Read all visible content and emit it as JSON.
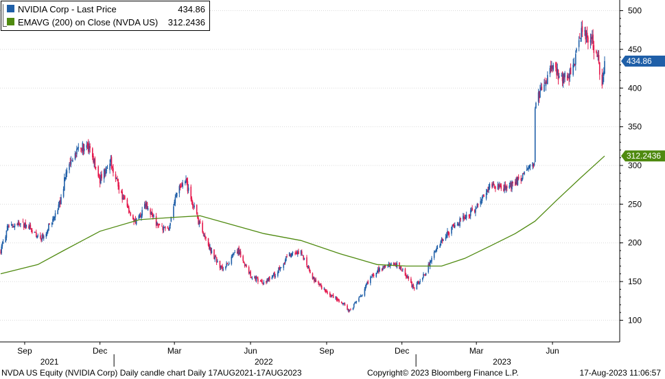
{
  "legend": [
    {
      "label": "NVIDIA Corp - Last Price",
      "value": "434.86",
      "color": "#1f5fa8"
    },
    {
      "label": "EMAVG (200)  on Close (NVDA US)",
      "value": "312.2436",
      "color": "#4f8a10"
    }
  ],
  "footer": {
    "left": "NVDA US Equity (NVIDIA Corp) Daily candle chart  Daily 17AUG2021-17AUG2023",
    "center": "Copyright© 2023 Bloomberg Finance L.P.",
    "right": "17-Aug-2023 11:06:57"
  },
  "chart_data": {
    "type": "candlestick",
    "y_axis": {
      "position": "right",
      "ticks": [
        100,
        150,
        200,
        250,
        300,
        350,
        400,
        450,
        500
      ],
      "range": [
        72,
        512
      ]
    },
    "x_axis": {
      "range": [
        "2021-08-17",
        "2023-08-17"
      ],
      "month_ticks": [
        {
          "date": "2021-09-15",
          "label": "Sep"
        },
        {
          "date": "2021-12-15",
          "label": "Dec"
        },
        {
          "date": "2022-03-15",
          "label": "Mar"
        },
        {
          "date": "2022-06-15",
          "label": "Jun"
        },
        {
          "date": "2022-09-15",
          "label": "Sep"
        },
        {
          "date": "2022-12-15",
          "label": "Dec"
        },
        {
          "date": "2023-03-15",
          "label": "Mar"
        },
        {
          "date": "2023-06-15",
          "label": "Jun"
        }
      ],
      "year_labels": [
        {
          "date": "2021-10-15",
          "label": "2021"
        },
        {
          "date": "2022-07-01",
          "label": "2022"
        },
        {
          "date": "2023-04-15",
          "label": "2023"
        }
      ],
      "year_dividers": [
        "2022-01-01",
        "2023-01-01"
      ]
    },
    "grid": true,
    "price_path": [
      [
        "2021-08-17",
        190
      ],
      [
        "2021-08-25",
        218
      ],
      [
        "2021-09-08",
        226
      ],
      [
        "2021-09-20",
        220
      ],
      [
        "2021-10-05",
        205
      ],
      [
        "2021-10-15",
        222
      ],
      [
        "2021-10-25",
        240
      ],
      [
        "2021-11-05",
        295
      ],
      [
        "2021-11-20",
        325
      ],
      [
        "2021-12-01",
        322
      ],
      [
        "2021-12-15",
        282
      ],
      [
        "2021-12-28",
        305
      ],
      [
        "2022-01-10",
        262
      ],
      [
        "2022-01-27",
        225
      ],
      [
        "2022-02-08",
        250
      ],
      [
        "2022-02-24",
        220
      ],
      [
        "2022-03-08",
        218
      ],
      [
        "2022-03-18",
        265
      ],
      [
        "2022-03-29",
        278
      ],
      [
        "2022-04-12",
        230
      ],
      [
        "2022-04-28",
        190
      ],
      [
        "2022-05-12",
        165
      ],
      [
        "2022-05-31",
        190
      ],
      [
        "2022-06-16",
        156
      ],
      [
        "2022-07-01",
        148
      ],
      [
        "2022-07-15",
        160
      ],
      [
        "2022-08-01",
        185
      ],
      [
        "2022-08-15",
        188
      ],
      [
        "2022-08-31",
        152
      ],
      [
        "2022-09-15",
        136
      ],
      [
        "2022-10-03",
        123
      ],
      [
        "2022-10-13",
        112
      ],
      [
        "2022-10-28",
        135
      ],
      [
        "2022-11-10",
        160
      ],
      [
        "2022-11-28",
        170
      ],
      [
        "2022-12-08",
        172
      ],
      [
        "2022-12-16",
        165
      ],
      [
        "2022-12-29",
        142
      ],
      [
        "2023-01-12",
        160
      ],
      [
        "2023-01-27",
        195
      ],
      [
        "2023-02-14",
        220
      ],
      [
        "2023-02-28",
        232
      ],
      [
        "2023-03-14",
        243
      ],
      [
        "2023-03-30",
        273
      ],
      [
        "2023-04-14",
        270
      ],
      [
        "2023-04-28",
        275
      ],
      [
        "2023-05-10",
        287
      ],
      [
        "2023-05-24",
        305
      ],
      [
        "2023-05-25",
        380
      ],
      [
        "2023-06-01",
        395
      ],
      [
        "2023-06-14",
        430
      ],
      [
        "2023-06-28",
        410
      ],
      [
        "2023-07-10",
        425
      ],
      [
        "2023-07-18",
        472
      ],
      [
        "2023-07-31",
        465
      ],
      [
        "2023-08-08",
        440
      ],
      [
        "2023-08-14",
        408
      ],
      [
        "2023-08-17",
        434.86
      ]
    ],
    "ema_path": [
      [
        "2021-08-17",
        160
      ],
      [
        "2021-10-01",
        172
      ],
      [
        "2021-11-01",
        190
      ],
      [
        "2021-12-15",
        215
      ],
      [
        "2022-02-01",
        230
      ],
      [
        "2022-03-15",
        233
      ],
      [
        "2022-04-15",
        235
      ],
      [
        "2022-05-15",
        226
      ],
      [
        "2022-07-01",
        212
      ],
      [
        "2022-08-15",
        203
      ],
      [
        "2022-10-01",
        186
      ],
      [
        "2022-11-15",
        172
      ],
      [
        "2022-12-20",
        170
      ],
      [
        "2023-02-01",
        170
      ],
      [
        "2023-03-01",
        180
      ],
      [
        "2023-04-01",
        196
      ],
      [
        "2023-05-01",
        212
      ],
      [
        "2023-05-25",
        228
      ],
      [
        "2023-06-20",
        255
      ],
      [
        "2023-07-20",
        285
      ],
      [
        "2023-08-17",
        312.2436
      ]
    ],
    "last_price": 434.86,
    "last_ema": 312.2436,
    "up_color": "#1f5fa8",
    "down_color": "#e5194d",
    "ema_color": "#4f8a10"
  }
}
